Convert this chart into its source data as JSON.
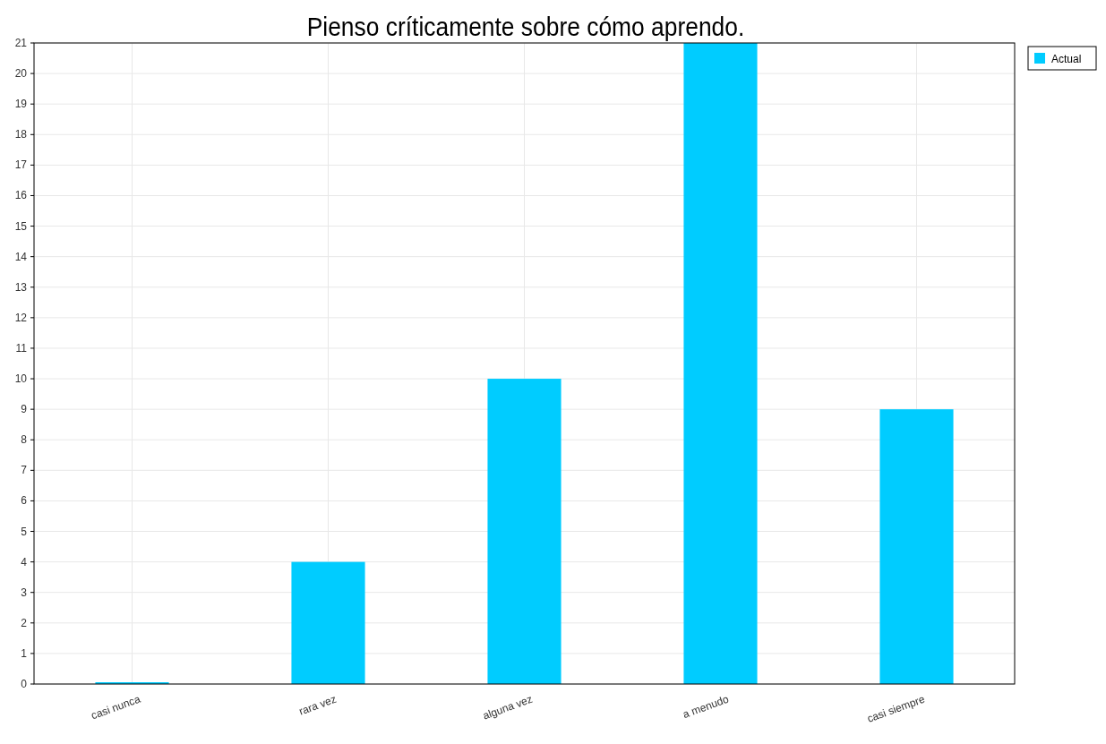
{
  "chart_data": {
    "type": "bar",
    "title": "Pienso críticamente sobre cómo aprendo.",
    "categories": [
      "casi nunca",
      "rara vez",
      "alguna vez",
      "a menudo",
      "casi siempre"
    ],
    "series": [
      {
        "name": "Actual",
        "color": "#00ccff",
        "values": [
          0,
          4,
          10,
          21,
          9
        ]
      }
    ],
    "ylim": [
      0,
      21
    ],
    "yticks": [
      0,
      1,
      2,
      3,
      4,
      5,
      6,
      7,
      8,
      9,
      10,
      11,
      12,
      13,
      14,
      15,
      16,
      17,
      18,
      19,
      20,
      21
    ],
    "grid": true,
    "legend": "top right"
  }
}
